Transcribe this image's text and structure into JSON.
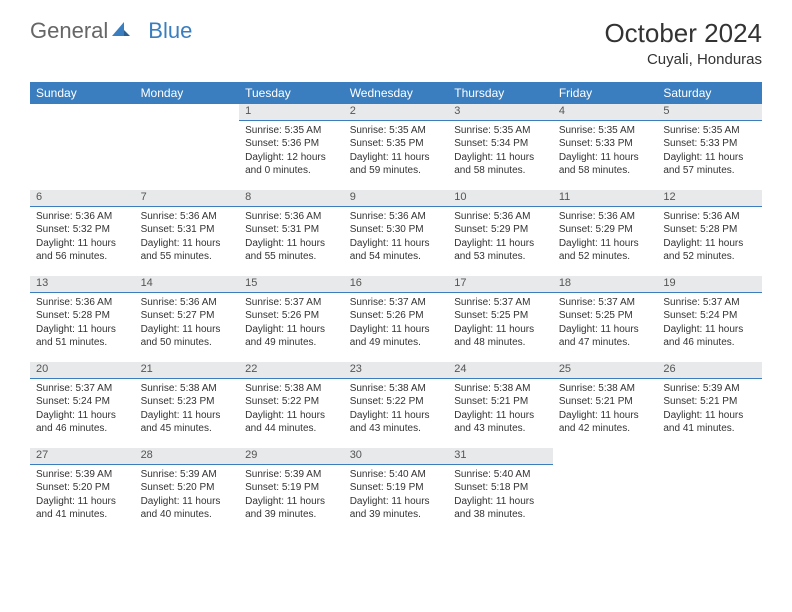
{
  "logo": {
    "text1": "General",
    "text2": "Blue"
  },
  "title": "October 2024",
  "location": "Cuyali, Honduras",
  "dayHeaders": [
    "Sunday",
    "Monday",
    "Tuesday",
    "Wednesday",
    "Thursday",
    "Friday",
    "Saturday"
  ],
  "colors": {
    "headerBg": "#3a7ebf",
    "headerText": "#ffffff",
    "dayNumBg": "#e8e9ea",
    "accent": "#3a7ebf"
  },
  "weeks": [
    [
      {
        "empty": true
      },
      {
        "empty": true
      },
      {
        "num": "1",
        "sunrise": "Sunrise: 5:35 AM",
        "sunset": "Sunset: 5:36 PM",
        "daylight": "Daylight: 12 hours and 0 minutes."
      },
      {
        "num": "2",
        "sunrise": "Sunrise: 5:35 AM",
        "sunset": "Sunset: 5:35 PM",
        "daylight": "Daylight: 11 hours and 59 minutes."
      },
      {
        "num": "3",
        "sunrise": "Sunrise: 5:35 AM",
        "sunset": "Sunset: 5:34 PM",
        "daylight": "Daylight: 11 hours and 58 minutes."
      },
      {
        "num": "4",
        "sunrise": "Sunrise: 5:35 AM",
        "sunset": "Sunset: 5:33 PM",
        "daylight": "Daylight: 11 hours and 58 minutes."
      },
      {
        "num": "5",
        "sunrise": "Sunrise: 5:35 AM",
        "sunset": "Sunset: 5:33 PM",
        "daylight": "Daylight: 11 hours and 57 minutes."
      }
    ],
    [
      {
        "num": "6",
        "sunrise": "Sunrise: 5:36 AM",
        "sunset": "Sunset: 5:32 PM",
        "daylight": "Daylight: 11 hours and 56 minutes."
      },
      {
        "num": "7",
        "sunrise": "Sunrise: 5:36 AM",
        "sunset": "Sunset: 5:31 PM",
        "daylight": "Daylight: 11 hours and 55 minutes."
      },
      {
        "num": "8",
        "sunrise": "Sunrise: 5:36 AM",
        "sunset": "Sunset: 5:31 PM",
        "daylight": "Daylight: 11 hours and 55 minutes."
      },
      {
        "num": "9",
        "sunrise": "Sunrise: 5:36 AM",
        "sunset": "Sunset: 5:30 PM",
        "daylight": "Daylight: 11 hours and 54 minutes."
      },
      {
        "num": "10",
        "sunrise": "Sunrise: 5:36 AM",
        "sunset": "Sunset: 5:29 PM",
        "daylight": "Daylight: 11 hours and 53 minutes."
      },
      {
        "num": "11",
        "sunrise": "Sunrise: 5:36 AM",
        "sunset": "Sunset: 5:29 PM",
        "daylight": "Daylight: 11 hours and 52 minutes."
      },
      {
        "num": "12",
        "sunrise": "Sunrise: 5:36 AM",
        "sunset": "Sunset: 5:28 PM",
        "daylight": "Daylight: 11 hours and 52 minutes."
      }
    ],
    [
      {
        "num": "13",
        "sunrise": "Sunrise: 5:36 AM",
        "sunset": "Sunset: 5:28 PM",
        "daylight": "Daylight: 11 hours and 51 minutes."
      },
      {
        "num": "14",
        "sunrise": "Sunrise: 5:36 AM",
        "sunset": "Sunset: 5:27 PM",
        "daylight": "Daylight: 11 hours and 50 minutes."
      },
      {
        "num": "15",
        "sunrise": "Sunrise: 5:37 AM",
        "sunset": "Sunset: 5:26 PM",
        "daylight": "Daylight: 11 hours and 49 minutes."
      },
      {
        "num": "16",
        "sunrise": "Sunrise: 5:37 AM",
        "sunset": "Sunset: 5:26 PM",
        "daylight": "Daylight: 11 hours and 49 minutes."
      },
      {
        "num": "17",
        "sunrise": "Sunrise: 5:37 AM",
        "sunset": "Sunset: 5:25 PM",
        "daylight": "Daylight: 11 hours and 48 minutes."
      },
      {
        "num": "18",
        "sunrise": "Sunrise: 5:37 AM",
        "sunset": "Sunset: 5:25 PM",
        "daylight": "Daylight: 11 hours and 47 minutes."
      },
      {
        "num": "19",
        "sunrise": "Sunrise: 5:37 AM",
        "sunset": "Sunset: 5:24 PM",
        "daylight": "Daylight: 11 hours and 46 minutes."
      }
    ],
    [
      {
        "num": "20",
        "sunrise": "Sunrise: 5:37 AM",
        "sunset": "Sunset: 5:24 PM",
        "daylight": "Daylight: 11 hours and 46 minutes."
      },
      {
        "num": "21",
        "sunrise": "Sunrise: 5:38 AM",
        "sunset": "Sunset: 5:23 PM",
        "daylight": "Daylight: 11 hours and 45 minutes."
      },
      {
        "num": "22",
        "sunrise": "Sunrise: 5:38 AM",
        "sunset": "Sunset: 5:22 PM",
        "daylight": "Daylight: 11 hours and 44 minutes."
      },
      {
        "num": "23",
        "sunrise": "Sunrise: 5:38 AM",
        "sunset": "Sunset: 5:22 PM",
        "daylight": "Daylight: 11 hours and 43 minutes."
      },
      {
        "num": "24",
        "sunrise": "Sunrise: 5:38 AM",
        "sunset": "Sunset: 5:21 PM",
        "daylight": "Daylight: 11 hours and 43 minutes."
      },
      {
        "num": "25",
        "sunrise": "Sunrise: 5:38 AM",
        "sunset": "Sunset: 5:21 PM",
        "daylight": "Daylight: 11 hours and 42 minutes."
      },
      {
        "num": "26",
        "sunrise": "Sunrise: 5:39 AM",
        "sunset": "Sunset: 5:21 PM",
        "daylight": "Daylight: 11 hours and 41 minutes."
      }
    ],
    [
      {
        "num": "27",
        "sunrise": "Sunrise: 5:39 AM",
        "sunset": "Sunset: 5:20 PM",
        "daylight": "Daylight: 11 hours and 41 minutes."
      },
      {
        "num": "28",
        "sunrise": "Sunrise: 5:39 AM",
        "sunset": "Sunset: 5:20 PM",
        "daylight": "Daylight: 11 hours and 40 minutes."
      },
      {
        "num": "29",
        "sunrise": "Sunrise: 5:39 AM",
        "sunset": "Sunset: 5:19 PM",
        "daylight": "Daylight: 11 hours and 39 minutes."
      },
      {
        "num": "30",
        "sunrise": "Sunrise: 5:40 AM",
        "sunset": "Sunset: 5:19 PM",
        "daylight": "Daylight: 11 hours and 39 minutes."
      },
      {
        "num": "31",
        "sunrise": "Sunrise: 5:40 AM",
        "sunset": "Sunset: 5:18 PM",
        "daylight": "Daylight: 11 hours and 38 minutes."
      },
      {
        "empty": true
      },
      {
        "empty": true
      }
    ]
  ]
}
